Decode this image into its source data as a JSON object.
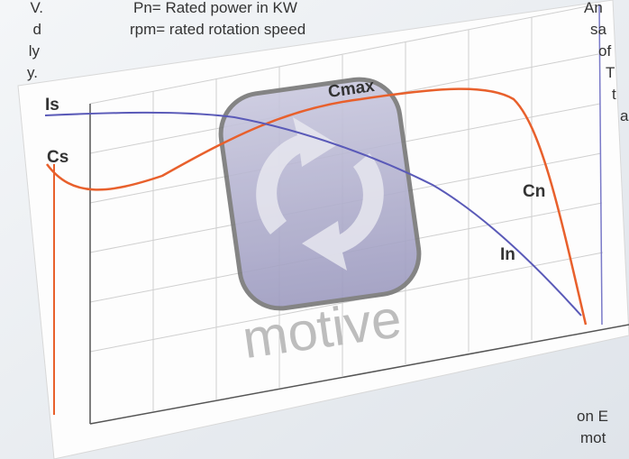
{
  "left_text": [
    "V.",
    "d",
    "ly",
    "y."
  ],
  "top_text": [
    "Pn= Rated power in KW",
    "rpm= rated rotation speed"
  ],
  "right_text": [
    "An",
    "sa",
    "of",
    "T",
    "t",
    "a"
  ],
  "bottom_right_text": [
    "on E",
    "mot"
  ],
  "curve_labels": {
    "is": "Is",
    "cs": "Cs",
    "cmax": "Cmax",
    "cn": "Cn",
    "in": "In"
  },
  "logo": "motive"
}
